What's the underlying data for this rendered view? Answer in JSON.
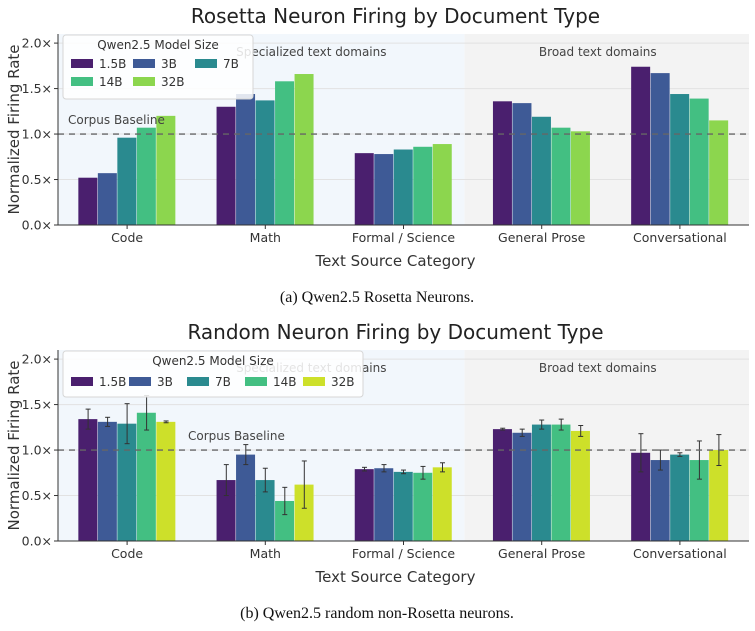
{
  "panels": [
    {
      "caption": "(a) Qwen2.5 Rosetta Neurons.",
      "chart_data": {
        "type": "bar",
        "title": "Rosetta Neuron Firing by Document Type",
        "xlabel": "Text Source Category",
        "ylabel": "Normalized Firing Rate",
        "categories": [
          "Code",
          "Math",
          "Formal / Science",
          "General Prose",
          "Conversational"
        ],
        "ylim": [
          0,
          2.1
        ],
        "yticks": [
          "0.0×",
          "0.5×",
          "1.0×",
          "1.5×",
          "2.0×"
        ],
        "ytick_values": [
          0,
          0.5,
          1.0,
          1.5,
          2.0
        ],
        "baseline": {
          "value": 1.0,
          "label": "Corpus Baseline"
        },
        "regions": [
          {
            "label": "Specialized text domains",
            "from": 0,
            "to": 2
          },
          {
            "label": "Broad text domains",
            "from": 3,
            "to": 4
          }
        ],
        "legend": {
          "title": "Qwen2.5 Model Size",
          "placement": "top-left",
          "columns": 3
        },
        "series": [
          {
            "name": "1.5B",
            "color": "#4a1f6e",
            "values": [
              0.52,
              1.3,
              0.79,
              1.36,
              1.74
            ]
          },
          {
            "name": "3B",
            "color": "#3e5a96",
            "values": [
              0.57,
              1.44,
              0.78,
              1.34,
              1.67
            ]
          },
          {
            "name": "7B",
            "color": "#2a8a8f",
            "values": [
              0.96,
              1.37,
              0.83,
              1.19,
              1.44
            ]
          },
          {
            "name": "14B",
            "color": "#43bf82",
            "values": [
              1.07,
              1.58,
              0.86,
              1.07,
              1.39
            ]
          },
          {
            "name": "32B",
            "color": "#8cd64e",
            "values": [
              1.2,
              1.66,
              0.89,
              1.03,
              1.15
            ]
          }
        ],
        "grid": true
      }
    },
    {
      "caption": "(b) Qwen2.5 random non-Rosetta neurons.",
      "chart_data": {
        "type": "bar",
        "title": "Random Neuron Firing by Document Type",
        "xlabel": "Text Source Category",
        "ylabel": "Normalized Firing Rate",
        "categories": [
          "Code",
          "Math",
          "Formal / Science",
          "General Prose",
          "Conversational"
        ],
        "ylim": [
          0,
          2.1
        ],
        "yticks": [
          "0.0×",
          "0.5×",
          "1.0×",
          "1.5×",
          "2.0×"
        ],
        "ytick_values": [
          0,
          0.5,
          1.0,
          1.5,
          2.0
        ],
        "baseline": {
          "value": 1.0,
          "label": "Corpus Baseline"
        },
        "regions": [
          {
            "label": "Specialized text domains",
            "from": 0,
            "to": 2
          },
          {
            "label": "Broad text domains",
            "from": 3,
            "to": 4
          }
        ],
        "legend": {
          "title": "Qwen2.5 Model Size",
          "placement": "top-left",
          "columns": 5
        },
        "series": [
          {
            "name": "1.5B",
            "color": "#4a1f6e",
            "values": [
              1.34,
              0.67,
              0.79,
              1.23,
              0.97
            ],
            "errors": [
              0.11,
              0.17,
              0.02,
              0.01,
              0.21
            ]
          },
          {
            "name": "3B",
            "color": "#3e5a96",
            "values": [
              1.31,
              0.95,
              0.8,
              1.19,
              0.89
            ],
            "errors": [
              0.05,
              0.11,
              0.04,
              0.04,
              0.11
            ]
          },
          {
            "name": "7B",
            "color": "#2a8a8f",
            "values": [
              1.29,
              0.67,
              0.76,
              1.28,
              0.95
            ],
            "errors": [
              0.22,
              0.13,
              0.02,
              0.05,
              0.02
            ]
          },
          {
            "name": "14B",
            "color": "#43bf82",
            "values": [
              1.41,
              0.44,
              0.75,
              1.28,
              0.89
            ],
            "errors": [
              0.19,
              0.15,
              0.07,
              0.06,
              0.21
            ]
          },
          {
            "name": "32B",
            "color": "#cde02a",
            "values": [
              1.31,
              0.62,
              0.81,
              1.21,
              1.0
            ],
            "errors": [
              0.01,
              0.26,
              0.05,
              0.06,
              0.17
            ]
          }
        ],
        "grid": true
      }
    }
  ]
}
